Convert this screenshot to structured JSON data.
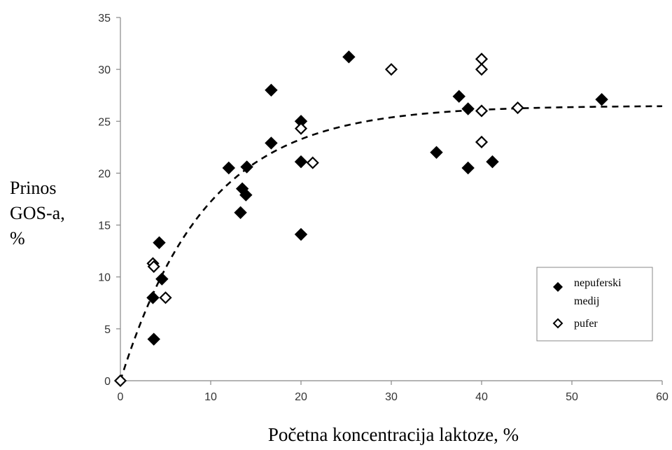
{
  "chart_data": {
    "type": "scatter",
    "xlabel": "Početna koncentracija laktoze, %",
    "ylabel_lines": [
      "Prinos",
      "GOS-a,",
      "%"
    ],
    "xlim": [
      0,
      60
    ],
    "ylim": [
      0,
      35
    ],
    "xticks": [
      "0",
      "10",
      "20",
      "30",
      "40",
      "50",
      "60"
    ],
    "yticks": [
      "0",
      "5",
      "10",
      "15",
      "20",
      "25",
      "30",
      "35"
    ],
    "grid": false,
    "legend_position": "right",
    "legend": [
      {
        "label_lines": [
          "nepuferski",
          "medij"
        ],
        "marker": "filled-diamond"
      },
      {
        "label_lines": [
          "pufer"
        ],
        "marker": "open-diamond"
      }
    ],
    "series": [
      {
        "name": "nepuferski medij",
        "marker": "filled-diamond",
        "color": "#000000",
        "points": [
          [
            3.6,
            8.0
          ],
          [
            3.7,
            4.0
          ],
          [
            4.3,
            13.3
          ],
          [
            4.6,
            9.8
          ],
          [
            12.0,
            20.5
          ],
          [
            13.3,
            16.2
          ],
          [
            13.5,
            18.5
          ],
          [
            13.9,
            17.9
          ],
          [
            14.0,
            20.6
          ],
          [
            16.7,
            28.0
          ],
          [
            16.7,
            22.9
          ],
          [
            20.0,
            25.0
          ],
          [
            20.0,
            21.1
          ],
          [
            20.0,
            14.1
          ],
          [
            25.3,
            31.2
          ],
          [
            35.0,
            22.0
          ],
          [
            37.5,
            27.4
          ],
          [
            38.5,
            26.2
          ],
          [
            38.5,
            20.5
          ],
          [
            41.2,
            21.1
          ],
          [
            53.3,
            27.1
          ]
        ]
      },
      {
        "name": "pufer",
        "marker": "open-diamond",
        "color": "#000000",
        "points": [
          [
            0.0,
            0.0
          ],
          [
            3.6,
            11.3
          ],
          [
            3.7,
            11.0
          ],
          [
            5.0,
            8.0
          ],
          [
            20.0,
            24.3
          ],
          [
            21.3,
            21.0
          ],
          [
            30.0,
            30.0
          ],
          [
            40.0,
            31.0
          ],
          [
            40.0,
            30.0
          ],
          [
            40.0,
            26.0
          ],
          [
            40.0,
            23.0
          ],
          [
            44.0,
            26.3
          ]
        ]
      }
    ],
    "fit_curve": {
      "style": "dashed",
      "color": "#000000",
      "model": "y = a * (1 - exp(-x / k))",
      "a": 26.5,
      "k": 9.5
    }
  }
}
